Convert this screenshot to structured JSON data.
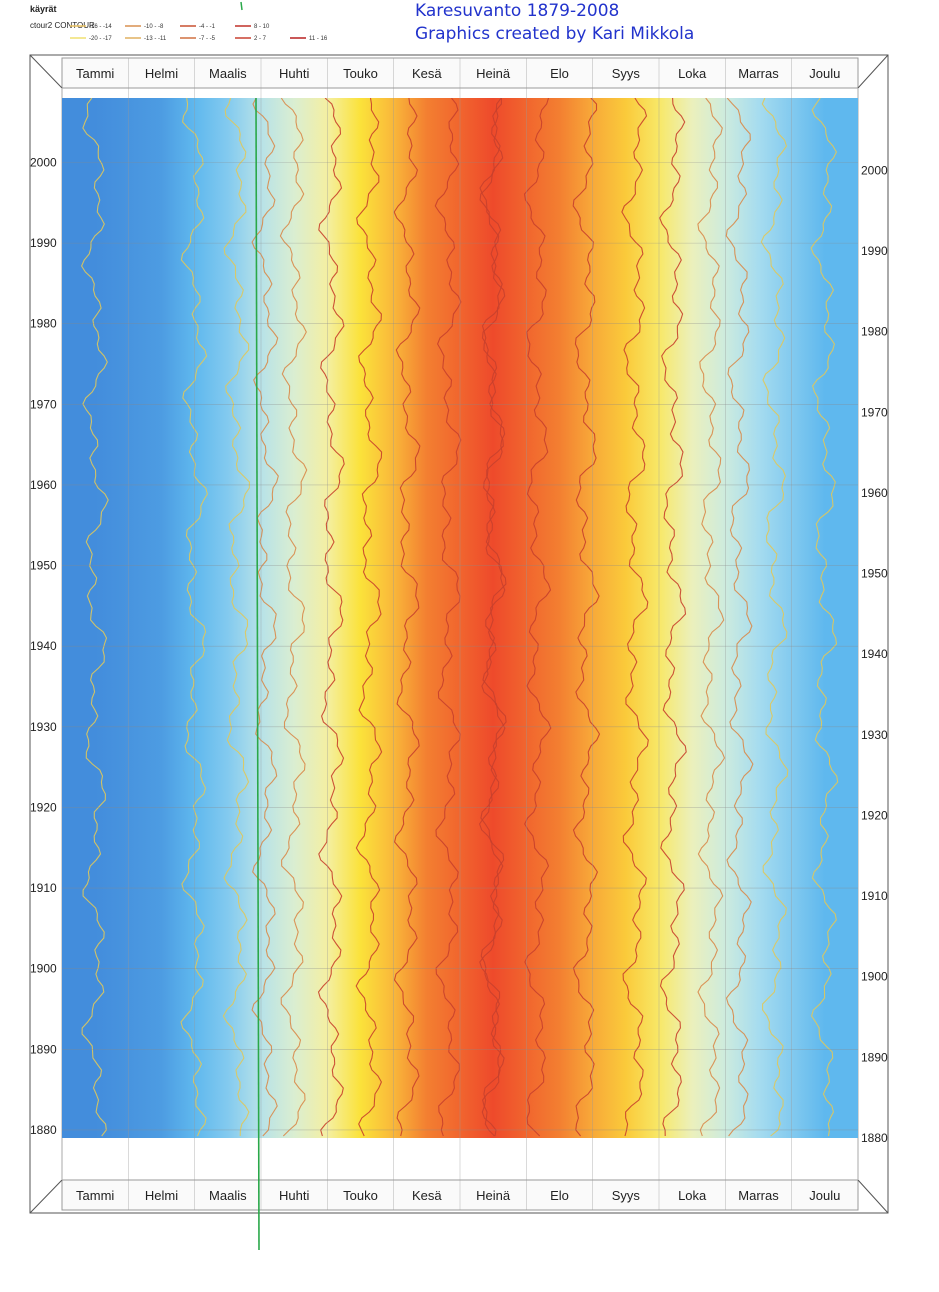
{
  "title_line1": "Karesuvanto 1879-2008",
  "title_line2": "Graphics created by Kari Mikkola",
  "legend": {
    "title": "käyrät",
    "subtitle": "ctour2 CONTOUR",
    "items": [
      {
        "label": "-20 - -17",
        "color": "#f0e070"
      },
      {
        "label": "-16 - -14",
        "color": "#e8c060"
      },
      {
        "label": "-13 - -11",
        "color": "#e0b060"
      },
      {
        "label": "-10 - -8",
        "color": "#d89050"
      },
      {
        "label": "-7 - -5",
        "color": "#d07040"
      },
      {
        "label": "-4 - -1",
        "color": "#c85030"
      },
      {
        "label": "2 - 7",
        "color": "#c84030"
      },
      {
        "label": "8 - 10",
        "color": "#c03028"
      },
      {
        "label": "11 - 16",
        "color": "#b82020"
      }
    ]
  },
  "chart_data": {
    "type": "heatmap",
    "title": "Karesuvanto 1879-2008",
    "subtitle": "Graphics created by Kari Mikkola",
    "x_categories": [
      "Tammi",
      "Helmi",
      "Maalis",
      "Huhti",
      "Touko",
      "Kesä",
      "Heinä",
      "Elo",
      "Syys",
      "Loka",
      "Marras",
      "Joulu"
    ],
    "y_ticks": [
      "2000",
      "1990",
      "1980",
      "1970",
      "1960",
      "1950",
      "1940",
      "1930",
      "1920",
      "1910",
      "1900",
      "1890",
      "1880"
    ],
    "y_tick_values": [
      2000,
      1990,
      1980,
      1970,
      1960,
      1950,
      1940,
      1930,
      1920,
      1910,
      1900,
      1890,
      1880
    ],
    "ylim": [
      1879,
      2008
    ],
    "legend_title": "käyrät",
    "legend_subtitle": "ctour2 CONTOUR",
    "contour_levels": [
      "-20 - -17",
      "-16 - -14",
      "-13 - -11",
      "-10 - -8",
      "-7 - -5",
      "-4 - -1",
      "2 - 7",
      "8 - 10",
      "11 - 16"
    ],
    "monthly_mean_profile": [
      -16,
      -15,
      -11,
      -4,
      3,
      10,
      13,
      10,
      5,
      -2,
      -9,
      -13
    ],
    "color_scale": {
      "stops": [
        {
          "value": -17,
          "color": "#3a7fd6"
        },
        {
          "value": -13,
          "color": "#5fb8ee"
        },
        {
          "value": -9,
          "color": "#a6dcef"
        },
        {
          "value": -5,
          "color": "#d2eddc"
        },
        {
          "value": -1,
          "color": "#f3f1b1"
        },
        {
          "value": 3,
          "color": "#fbe23a"
        },
        {
          "value": 7,
          "color": "#f9b13a"
        },
        {
          "value": 10,
          "color": "#f37f31"
        },
        {
          "value": 13,
          "color": "#ee4a2b"
        },
        {
          "value": 15,
          "color": "#e8312b"
        }
      ]
    },
    "grid": true
  }
}
